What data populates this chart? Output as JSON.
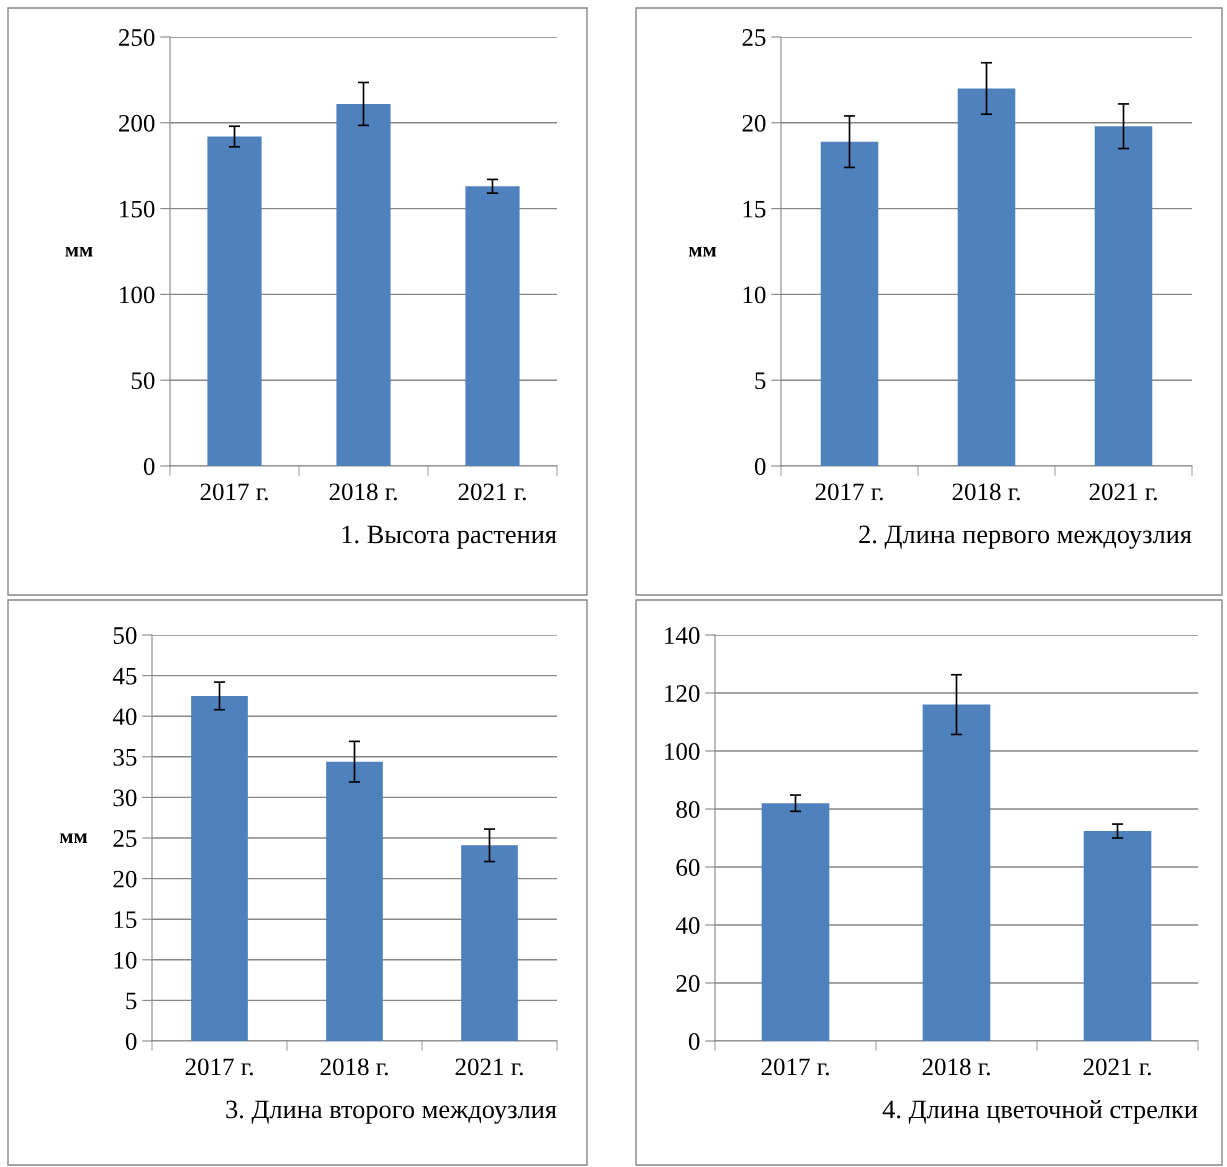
{
  "chart_data": [
    {
      "type": "bar",
      "categories": [
        "2017 г.",
        "2018 г.",
        "2021 г."
      ],
      "values": [
        192,
        211,
        163
      ],
      "errors": [
        6,
        12.5,
        4
      ],
      "color": "#4f81bd",
      "xlabel": "1. Высота растения",
      "ylabel": "мм",
      "ylim": [
        0,
        250
      ],
      "yticks": [
        0,
        50,
        100,
        150,
        200,
        250
      ],
      "grid": "y"
    },
    {
      "type": "bar",
      "categories": [
        "2017 г.",
        "2018 г.",
        "2021 г."
      ],
      "values": [
        18.9,
        22.0,
        19.8
      ],
      "errors": [
        1.5,
        1.5,
        1.3
      ],
      "color": "#4f81bd",
      "xlabel": "2. Длина первого междоузлия",
      "ylabel": "мм",
      "ylim": [
        0,
        25
      ],
      "yticks": [
        0,
        5,
        10,
        15,
        20,
        25
      ],
      "grid": "y"
    },
    {
      "type": "bar",
      "categories": [
        "2017 г.",
        "2018 г.",
        "2021 г."
      ],
      "values": [
        42.5,
        34.4,
        24.1
      ],
      "errors": [
        1.7,
        2.5,
        2.0
      ],
      "color": "#4f81bd",
      "xlabel": "3. Длина второго междоузлия",
      "ylabel": "мм",
      "ylim": [
        0,
        50
      ],
      "yticks": [
        0,
        5,
        10,
        15,
        20,
        25,
        30,
        35,
        40,
        45,
        50
      ],
      "grid": "y"
    },
    {
      "type": "bar",
      "categories": [
        "2017 г.",
        "2018 г.",
        "2021 г."
      ],
      "values": [
        82,
        116,
        72.4
      ],
      "errors": [
        2.8,
        10.3,
        2.4
      ],
      "color": "#4f81bd",
      "xlabel": "4. Длина цветочной стрелки",
      "ylim": [
        0,
        140
      ],
      "yticks": [
        0,
        20,
        40,
        60,
        80,
        100,
        120,
        140
      ],
      "grid": "y"
    }
  ]
}
